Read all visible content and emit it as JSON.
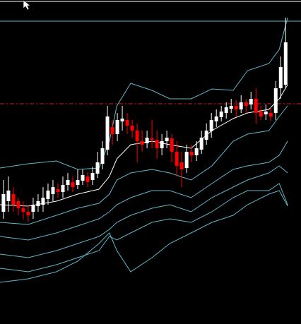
{
  "chart_data": {
    "type": "candlestick",
    "up_color": "#ffffff",
    "down_color": "#ff0000",
    "background": "#000000",
    "xlim": [
      -0.7,
      60.1
    ],
    "ylim": [
      0,
      459
    ],
    "open": [
      159,
      174,
      184,
      174,
      164,
      159,
      159,
      167,
      169,
      177,
      184,
      191,
      187,
      197,
      201,
      197,
      203,
      209,
      204,
      213,
      227,
      247,
      279,
      269,
      287,
      289,
      281,
      274,
      259,
      256,
      263,
      261,
      249,
      259,
      263,
      244,
      229,
      221,
      244,
      239,
      247,
      261,
      273,
      287,
      293,
      299,
      305,
      309,
      304,
      314,
      311,
      319,
      301,
      297,
      299,
      299,
      334,
      339
    ],
    "high": [
      204,
      209,
      194,
      179,
      174,
      169,
      179,
      184,
      194,
      199,
      204,
      199,
      209,
      214,
      209,
      219,
      219,
      215,
      223,
      244,
      259,
      309,
      289,
      299,
      309,
      299,
      289,
      284,
      274,
      274,
      289,
      274,
      269,
      274,
      269,
      259,
      244,
      254,
      254,
      259,
      274,
      284,
      299,
      304,
      309,
      314,
      319,
      317,
      324,
      319,
      329,
      334,
      309,
      311,
      307,
      344,
      379,
      434
    ],
    "low": [
      149,
      159,
      159,
      154,
      149,
      144,
      149,
      159,
      159,
      169,
      174,
      179,
      179,
      189,
      187,
      191,
      197,
      194,
      197,
      207,
      219,
      239,
      254,
      259,
      274,
      269,
      264,
      229,
      244,
      249,
      249,
      234,
      239,
      249,
      229,
      209,
      194,
      214,
      229,
      231,
      241,
      254,
      264,
      279,
      287,
      291,
      299,
      294,
      299,
      299,
      304,
      284,
      289,
      289,
      287,
      289,
      319,
      334
    ],
    "close": [
      184,
      189,
      169,
      164,
      159,
      154,
      169,
      174,
      179,
      189,
      194,
      187,
      197,
      204,
      194,
      204,
      211,
      201,
      214,
      229,
      249,
      294,
      269,
      289,
      291,
      281,
      274,
      259,
      254,
      264,
      261,
      249,
      259,
      264,
      244,
      224,
      219,
      244,
      239,
      249,
      264,
      274,
      289,
      294,
      301,
      307,
      309,
      304,
      314,
      309,
      319,
      299,
      294,
      301,
      294,
      334,
      364,
      399
    ],
    "bands": {
      "x": [
        -0.7,
        5,
        10.7,
        15,
        19.3,
        21.4,
        22.9,
        25.7,
        30,
        33.6,
        37.9,
        42.1,
        46.4,
        49.3,
        53.6,
        55.7,
        57.4
      ],
      "series": [
        {
          "color": "#5fb8c8",
          "values": [
            221,
            227,
            231,
            219,
            221,
            259,
            309,
            341,
            331,
            319,
            319,
            333,
            331,
            359,
            369,
            389,
            434
          ]
        },
        {
          "color": "#ffffff",
          "values": [
            169,
            167,
            174,
            184,
            191,
            209,
            234,
            254,
            259,
            254,
            249,
            274,
            291,
            299,
            304,
            319,
            339
          ]
        },
        {
          "color": "#5fb8c8",
          "values": [
            144,
            141,
            154,
            164,
            171,
            184,
            204,
            214,
            219,
            214,
            204,
            224,
            259,
            269,
            274,
            294,
            309
          ]
        },
        {
          "color": "#5fb8c8",
          "values": [
            124,
            119,
            129,
            139,
            149,
            159,
            169,
            179,
            189,
            189,
            179,
            199,
            219,
            224,
            229,
            239,
            259
          ]
        },
        {
          "color": "#5fb8c8",
          "values": [
            99,
            94,
            104,
            114,
            124,
            134,
            144,
            154,
            164,
            169,
            159,
            179,
            194,
            204,
            214,
            224,
            214
          ]
        },
        {
          "color": "#5fb8c8",
          "values": [
            79,
            74,
            84,
            94,
            104,
            124,
            119,
            129,
            144,
            149,
            144,
            159,
            179,
            189,
            189,
            199,
            169
          ]
        },
        {
          "color": "#5fb8c8",
          "values": [
            59,
            64,
            74,
            89,
            114,
            129,
            104,
            74,
            94,
            114,
            129,
            144,
            154,
            169,
            184,
            189,
            167
          ]
        }
      ]
    },
    "hlines": [
      {
        "value": 457,
        "color": "#ffffff",
        "dash": false
      },
      {
        "value": 429,
        "color": "#5fb8c8",
        "dash": false
      },
      {
        "value": 312,
        "color": "#d02020",
        "dash": true
      }
    ]
  }
}
